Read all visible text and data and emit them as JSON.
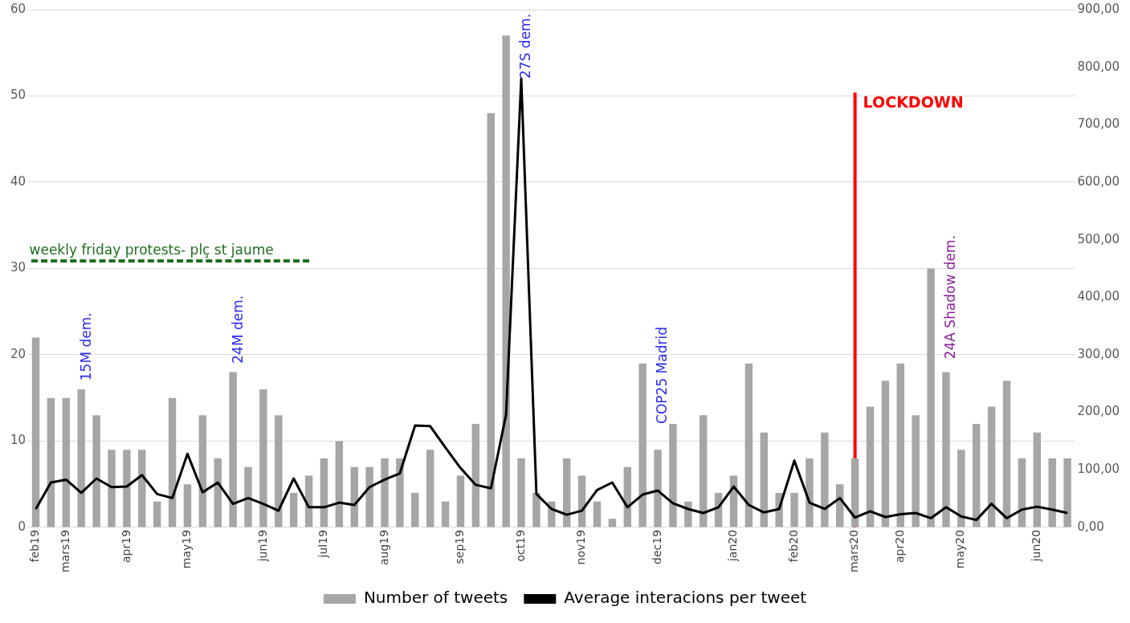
{
  "chart_data": {
    "type": "bar",
    "categories": [
      "feb19",
      null,
      "mars19",
      null,
      null,
      null,
      "apr19",
      null,
      null,
      null,
      "may19",
      null,
      null,
      null,
      null,
      "jun19",
      null,
      null,
      null,
      "jul19",
      null,
      null,
      null,
      "aug19",
      null,
      null,
      null,
      null,
      "sep19",
      null,
      null,
      null,
      "oct19",
      null,
      null,
      null,
      "nov19",
      null,
      null,
      null,
      null,
      "dec19",
      null,
      null,
      null,
      null,
      "jan20",
      null,
      null,
      null,
      "feb20",
      null,
      null,
      null,
      "mars20",
      null,
      null,
      "apr20",
      null,
      null,
      null,
      "may20",
      null,
      null,
      null,
      null,
      "jun20",
      null,
      null
    ],
    "series": [
      {
        "name": "Number of tweets",
        "color": "#a6a6a6",
        "values": [
          22,
          15,
          15,
          16,
          13,
          9,
          9,
          9,
          3,
          15,
          5,
          13,
          8,
          18,
          7,
          16,
          13,
          4,
          6,
          8,
          10,
          7,
          7,
          8,
          8,
          4,
          9,
          3,
          6,
          12,
          48,
          57,
          8,
          4,
          3,
          8,
          6,
          3,
          1,
          7,
          19,
          9,
          12,
          3,
          13,
          4,
          6,
          19,
          11,
          4,
          4,
          8,
          11,
          5,
          8,
          14,
          17,
          19,
          13,
          30,
          18,
          9,
          12,
          14,
          17,
          8,
          11,
          8,
          8
        ]
      },
      {
        "name": "Average interacions per tweet",
        "type": "line",
        "axis": "y2",
        "color": "#000000",
        "values": [
          32,
          78,
          83,
          60,
          85,
          70,
          71,
          91,
          58,
          51,
          128,
          61,
          78,
          41,
          51,
          41,
          29,
          85,
          35,
          35,
          43,
          39,
          70,
          83,
          94,
          177,
          176,
          139,
          103,
          74,
          68,
          196,
          780,
          58,
          32,
          22,
          29,
          65,
          78,
          35,
          57,
          64,
          42,
          32,
          25,
          35,
          71,
          39,
          26,
          32,
          116,
          43,
          32,
          51,
          17,
          28,
          18,
          23,
          25,
          16,
          35,
          19,
          13,
          41,
          16,
          31,
          36,
          31,
          25
        ]
      }
    ],
    "ylim": [
      0,
      60
    ],
    "yticks": [
      0,
      10,
      20,
      30,
      40,
      50,
      60
    ],
    "y2lim": [
      0,
      900
    ],
    "y2ticks": [
      {
        "value": 0,
        "label": "0,00"
      },
      {
        "value": 100,
        "label": "100,00"
      },
      {
        "value": 200,
        "label": "200,00"
      },
      {
        "value": 300,
        "label": "300,00"
      },
      {
        "value": 400,
        "label": "400,00"
      },
      {
        "value": 500,
        "label": "500,00"
      },
      {
        "value": 600,
        "label": "600,00"
      },
      {
        "value": 700,
        "label": "700,00"
      },
      {
        "value": 800,
        "label": "800,00"
      },
      {
        "value": 900,
        "label": "900,00"
      }
    ],
    "grid": "y",
    "legend": "bottom",
    "marker": "none",
    "line_style": "solid",
    "ref_lines": [
      {
        "axis": "x",
        "value": "mars20",
        "label": "LOCKDOWN",
        "color": "#ff0000"
      }
    ],
    "annotations": [
      "15M dem.",
      "24M dem.",
      "27S dem.",
      "COP25 Madrid",
      "24A Shadow dem.",
      "weekly friday protests- plç st jaume"
    ]
  }
}
